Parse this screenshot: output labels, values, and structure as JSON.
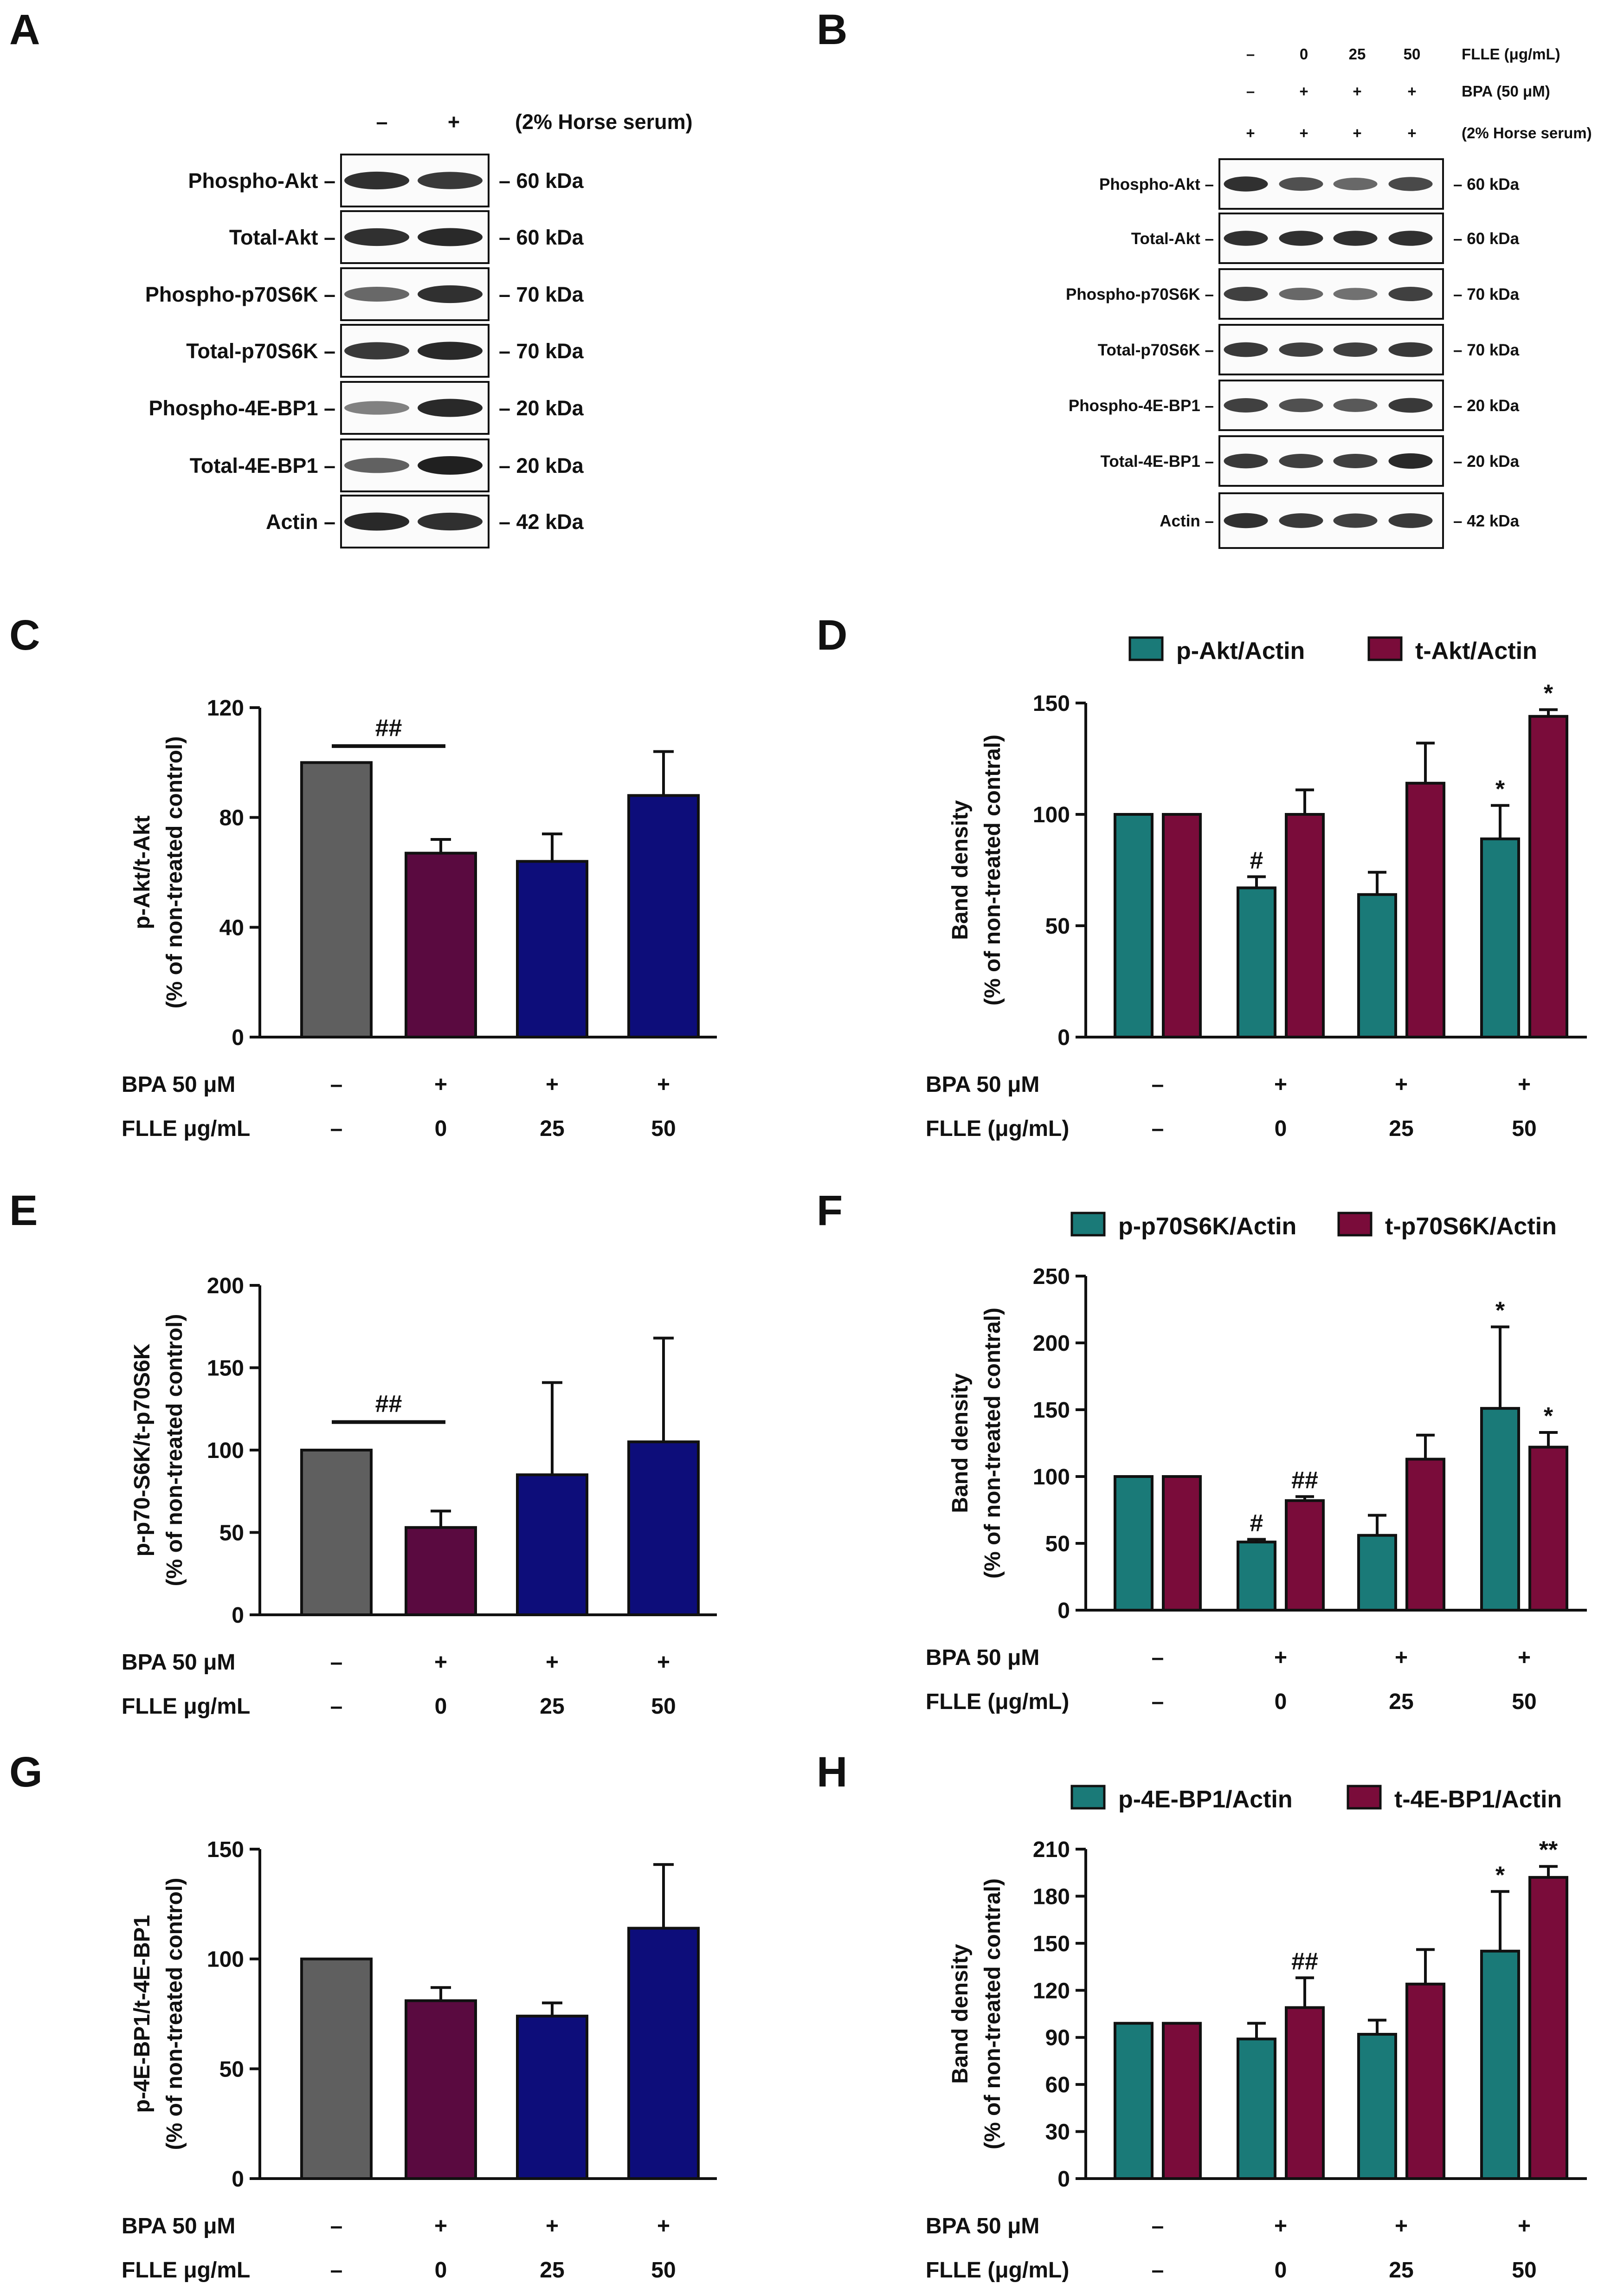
{
  "colors": {
    "gray": "#5f5f5f",
    "maroon": "#5a0a40",
    "navy": "#0d0d7a",
    "teal": "#1a7a78",
    "crimson": "#7a0c3a"
  },
  "panels": {
    "A": "A",
    "B": "B",
    "C": "C",
    "D": "D",
    "E": "E",
    "F": "F",
    "G": "G",
    "H": "H"
  },
  "blot_a": {
    "header_signs": [
      "–",
      "+"
    ],
    "header_label": "(2% Horse serum)",
    "rows": [
      {
        "label": "Phospho-Akt –",
        "kda": "– 60 kDa"
      },
      {
        "label": "Total-Akt –",
        "kda": "– 60 kDa"
      },
      {
        "label": "Phospho-p70S6K –",
        "kda": "– 70 kDa"
      },
      {
        "label": "Total-p70S6K –",
        "kda": "– 70 kDa"
      },
      {
        "label": "Phospho-4E-BP1 –",
        "kda": "– 20 kDa"
      },
      {
        "label": "Total-4E-BP1 –",
        "kda": "– 20 kDa"
      },
      {
        "label": "Actin –",
        "kda": "–  42 kDa"
      }
    ]
  },
  "blot_b": {
    "header_rows": [
      {
        "signs": [
          "–",
          "0",
          "25",
          "50"
        ],
        "label": "FLLE (μg/mL)"
      },
      {
        "signs": [
          "–",
          "+",
          "+",
          "+"
        ],
        "label": "BPA (50 μM)"
      },
      {
        "signs": [
          "+",
          "+",
          "+",
          "+"
        ],
        "label": "(2% Horse serum)"
      }
    ],
    "rows": [
      {
        "label": "Phospho-Akt –",
        "kda": "– 60 kDa"
      },
      {
        "label": "Total-Akt –",
        "kda": "– 60 kDa"
      },
      {
        "label": "Phospho-p70S6K –",
        "kda": "– 70 kDa"
      },
      {
        "label": "Total-p70S6K –",
        "kda": "– 70 kDa"
      },
      {
        "label": "Phospho-4E-BP1 –",
        "kda": "– 20 kDa"
      },
      {
        "label": "Total-4E-BP1 –",
        "kda": "– 20 kDa"
      },
      {
        "label": "Actin –",
        "kda": "–  42 kDa"
      }
    ]
  },
  "chart_data": [
    {
      "panel": "C",
      "type": "bar",
      "ylabel_line1": "p-Akt/t-Akt",
      "ylabel_line2": "(% of non-treated control)",
      "ylim": [
        0,
        120
      ],
      "yticks": [
        "0",
        "40",
        "80",
        "120"
      ],
      "categories": [
        "ctrl",
        "BPA",
        "BPA+FLLE25",
        "BPA+FLLE50"
      ],
      "values": [
        100,
        67,
        64,
        88
      ],
      "errors": [
        0,
        5,
        10,
        16
      ],
      "colors": [
        "gray",
        "maroon",
        "navy",
        "navy"
      ],
      "bracket": {
        "label": "##",
        "y": 106
      },
      "condition_rows": [
        {
          "label": "BPA 50 μM",
          "values": [
            "–",
            "+",
            "+",
            "+"
          ]
        },
        {
          "label": "FLLE μg/mL",
          "values": [
            "–",
            "0",
            "25",
            "50"
          ]
        }
      ]
    },
    {
      "panel": "D",
      "type": "bar",
      "ylabel_line1": "Band density",
      "ylabel_line2": "(% of non-treated contral)",
      "ylim": [
        0,
        150
      ],
      "yticks": [
        "0",
        "50",
        "100",
        "150"
      ],
      "categories": [
        "ctrl",
        "BPA",
        "BPA+FLLE25",
        "BPA+FLLE50"
      ],
      "series": [
        {
          "name": "p-Akt/Actin",
          "color": "teal",
          "values": [
            100,
            67,
            64,
            89
          ],
          "errors": [
            0,
            5,
            10,
            15
          ],
          "sig": [
            "",
            "#",
            "",
            "*"
          ]
        },
        {
          "name": "t-Akt/Actin",
          "color": "crimson",
          "values": [
            100,
            100,
            114,
            144
          ],
          "errors": [
            0,
            11,
            18,
            3
          ],
          "sig": [
            "",
            "",
            "",
            "*"
          ]
        }
      ],
      "condition_rows": [
        {
          "label": "BPA 50 μM",
          "values": [
            "–",
            "+",
            "+",
            "+"
          ]
        },
        {
          "label": "FLLE (μg/mL)",
          "values": [
            "–",
            "0",
            "25",
            "50"
          ]
        }
      ]
    },
    {
      "panel": "E",
      "type": "bar",
      "ylabel_line1": "p-p70-S6K/t-p70S6K",
      "ylabel_line2": "(% of non-treated control)",
      "ylim": [
        0,
        200
      ],
      "yticks": [
        "0",
        "50",
        "100",
        "150",
        "200"
      ],
      "categories": [
        "ctrl",
        "BPA",
        "BPA+FLLE25",
        "BPA+FLLE50"
      ],
      "values": [
        100,
        53,
        85,
        105
      ],
      "errors": [
        0,
        10,
        56,
        63
      ],
      "colors": [
        "gray",
        "maroon",
        "navy",
        "navy"
      ],
      "bracket": {
        "label": "##",
        "y": 117
      },
      "condition_rows": [
        {
          "label": "BPA 50 μM",
          "values": [
            "–",
            "+",
            "+",
            "+"
          ]
        },
        {
          "label": "FLLE μg/mL",
          "values": [
            "–",
            "0",
            "25",
            "50"
          ]
        }
      ]
    },
    {
      "panel": "F",
      "type": "bar",
      "ylabel_line1": "Band density",
      "ylabel_line2": "(% of non-treated contral)",
      "ylim": [
        0,
        250
      ],
      "yticks": [
        "0",
        "50",
        "100",
        "150",
        "200",
        "250"
      ],
      "categories": [
        "ctrl",
        "BPA",
        "BPA+FLLE25",
        "BPA+FLLE50"
      ],
      "series": [
        {
          "name": "p-p70S6K/Actin",
          "color": "teal",
          "values": [
            100,
            51,
            56,
            151
          ],
          "errors": [
            0,
            2,
            15,
            61
          ],
          "sig": [
            "",
            "#",
            "",
            "*"
          ]
        },
        {
          "name": "t-p70S6K/Actin",
          "color": "crimson",
          "values": [
            100,
            82,
            113,
            122
          ],
          "errors": [
            0,
            3,
            18,
            11
          ],
          "sig": [
            "",
            "##",
            "",
            "*"
          ]
        }
      ],
      "condition_rows": [
        {
          "label": "BPA 50 μM",
          "values": [
            "–",
            "+",
            "+",
            "+"
          ]
        },
        {
          "label": "FLLE (μg/mL)",
          "values": [
            "–",
            "0",
            "25",
            "50"
          ]
        }
      ]
    },
    {
      "panel": "G",
      "type": "bar",
      "ylabel_line1": "p-4E-BP1/t-4E-BP1",
      "ylabel_line2": "(% of non-treated control)",
      "ylim": [
        0,
        150
      ],
      "yticks": [
        "0",
        "50",
        "100",
        "150"
      ],
      "categories": [
        "ctrl",
        "BPA",
        "BPA+FLLE25",
        "BPA+FLLE50"
      ],
      "values": [
        100,
        81,
        74,
        114
      ],
      "errors": [
        0,
        6,
        6,
        29
      ],
      "colors": [
        "gray",
        "maroon",
        "navy",
        "navy"
      ],
      "condition_rows": [
        {
          "label": "BPA 50 μM",
          "values": [
            "–",
            "+",
            "+",
            "+"
          ]
        },
        {
          "label": "FLLE μg/mL",
          "values": [
            "–",
            "0",
            "25",
            "50"
          ]
        }
      ]
    },
    {
      "panel": "H",
      "type": "bar",
      "ylabel_line1": "Band density",
      "ylabel_line2": "(% of non-treated contral)",
      "ylim": [
        0,
        210
      ],
      "yticks": [
        "0",
        "30",
        "60",
        "90",
        "120",
        "150",
        "180",
        "210"
      ],
      "categories": [
        "ctrl",
        "BPA",
        "BPA+FLLE25",
        "BPA+FLLE50"
      ],
      "series": [
        {
          "name": "p-4E-BP1/Actin",
          "color": "teal",
          "values": [
            99,
            89,
            92,
            145
          ],
          "errors": [
            0,
            10,
            9,
            38
          ],
          "sig": [
            "",
            "",
            "",
            "*"
          ]
        },
        {
          "name": "t-4E-BP1/Actin",
          "color": "crimson",
          "values": [
            99,
            109,
            124,
            192
          ],
          "errors": [
            0,
            19,
            22,
            7
          ],
          "sig": [
            "",
            "##",
            "",
            "**"
          ]
        }
      ],
      "condition_rows": [
        {
          "label": "BPA 50 μM",
          "values": [
            "–",
            "+",
            "+",
            "+"
          ]
        },
        {
          "label": "FLLE (μg/mL)",
          "values": [
            "–",
            "0",
            "25",
            "50"
          ]
        }
      ]
    }
  ]
}
